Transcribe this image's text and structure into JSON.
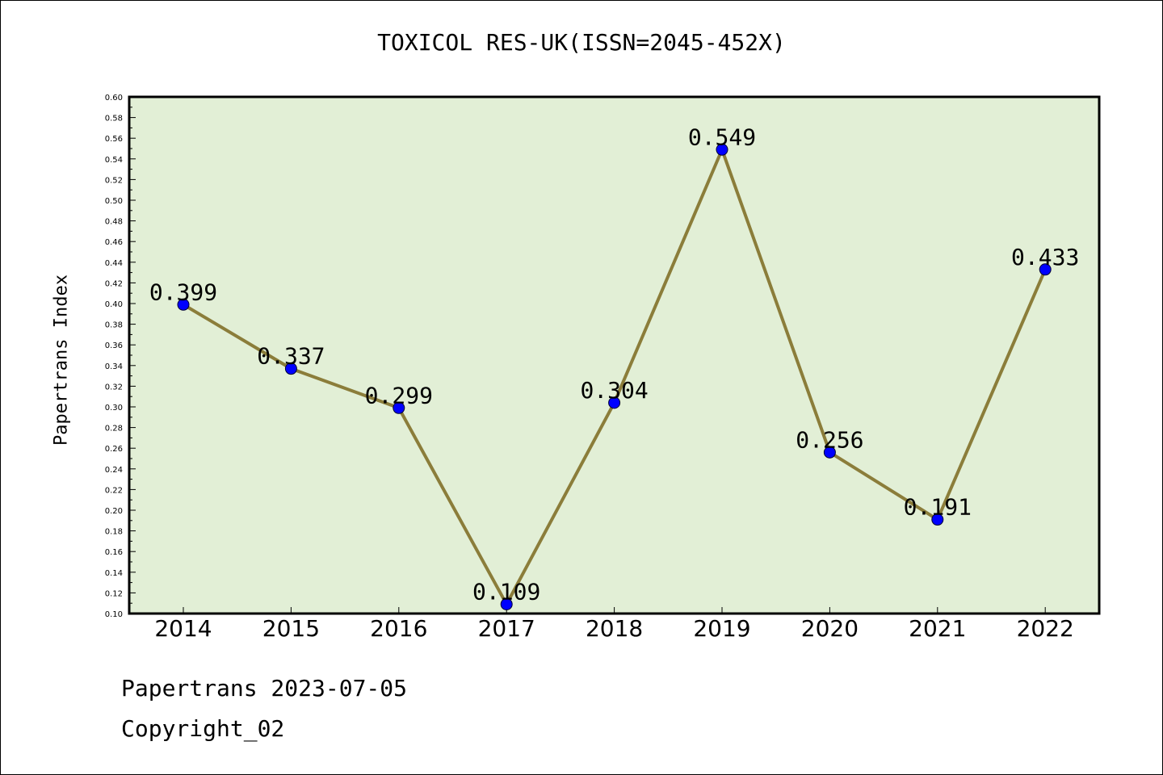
{
  "footer": {
    "line1": "Papertrans 2023-07-05",
    "line2": "Copyright_02"
  },
  "chart_data": {
    "type": "line",
    "title": "TOXICOL RES-UK(ISSN=2045-452X)",
    "xlabel": "",
    "ylabel": "Papertrans Index",
    "categories": [
      "2014",
      "2015",
      "2016",
      "2017",
      "2018",
      "2019",
      "2020",
      "2021",
      "2022"
    ],
    "values": [
      0.399,
      0.337,
      0.299,
      0.109,
      0.304,
      0.549,
      0.256,
      0.191,
      0.433
    ],
    "data_labels": [
      "0.399",
      "0.337",
      "0.299",
      "0.109",
      "0.304",
      "0.549",
      "0.256",
      "0.191",
      "0.433"
    ],
    "ylim": [
      0.1,
      0.6
    ],
    "yticks": [
      "0.10",
      "0.12",
      "0.14",
      "0.16",
      "0.18",
      "0.20",
      "0.22",
      "0.24",
      "0.26",
      "0.28",
      "0.30",
      "0.32",
      "0.34",
      "0.36",
      "0.38",
      "0.40",
      "0.42",
      "0.44",
      "0.46",
      "0.48",
      "0.50",
      "0.52",
      "0.54",
      "0.56",
      "0.58",
      "0.60"
    ],
    "grid": false,
    "colors": {
      "plot_background": "#e2efd6",
      "line": "#8b7d3a",
      "marker": "#0000ff"
    }
  }
}
